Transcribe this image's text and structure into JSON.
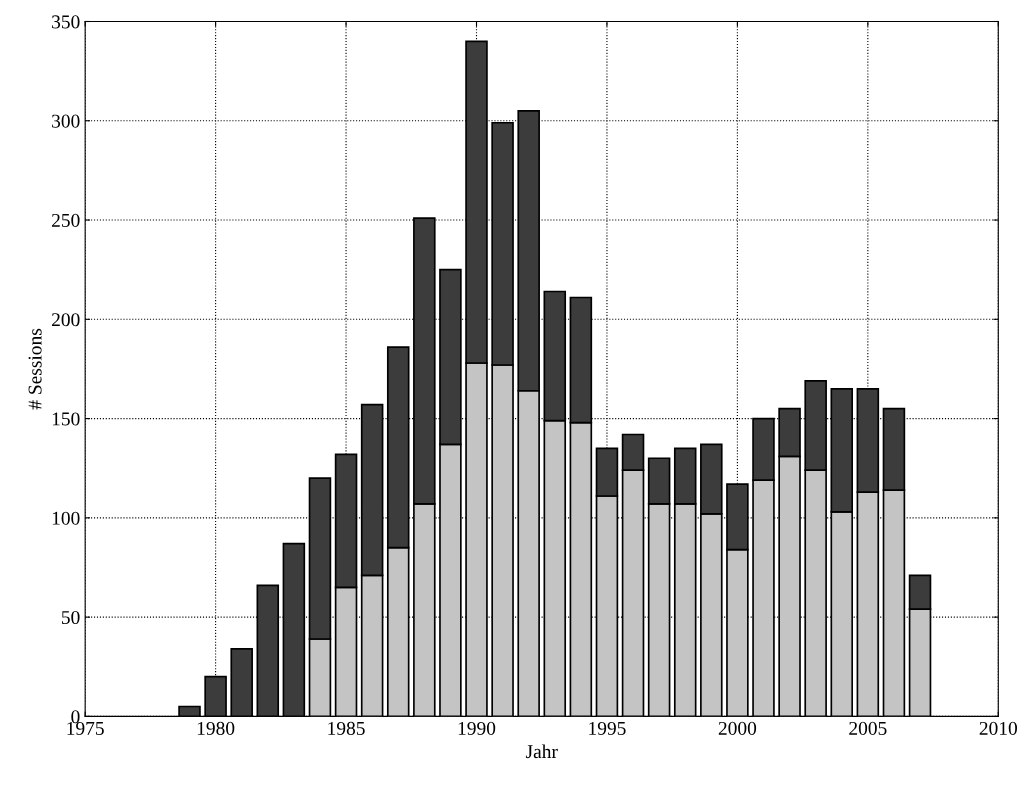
{
  "chart_data": {
    "type": "bar",
    "stacked": true,
    "xlabel": "Jahr",
    "ylabel": "# Sessions",
    "x": [
      1979,
      1980,
      1981,
      1982,
      1983,
      1984,
      1985,
      1986,
      1987,
      1988,
      1989,
      1990,
      1991,
      1992,
      1993,
      1994,
      1995,
      1996,
      1997,
      1998,
      1999,
      2000,
      2001,
      2002,
      2003,
      2004,
      2005,
      2006,
      2007
    ],
    "series": [
      {
        "color": "#c4c4c4",
        "values": [
          0,
          0,
          0,
          0,
          0,
          39,
          65,
          71,
          85,
          107,
          137,
          178,
          177,
          164,
          149,
          148,
          111,
          124,
          107,
          107,
          102,
          84,
          119,
          131,
          124,
          103,
          113,
          114,
          54
        ]
      },
      {
        "color": "#3c3c3c",
        "values": [
          5,
          20,
          34,
          66,
          87,
          81,
          67,
          86,
          101,
          144,
          88,
          162,
          122,
          141,
          65,
          63,
          24,
          18,
          23,
          28,
          35,
          33,
          31,
          24,
          45,
          62,
          52,
          41,
          17
        ]
      }
    ],
    "xlim": [
      1975,
      2010
    ],
    "xticks": [
      1975,
      1980,
      1985,
      1990,
      1995,
      2000,
      2005,
      2010
    ],
    "ylim": [
      0,
      350
    ],
    "yticks": [
      0,
      50,
      100,
      150,
      200,
      250,
      300,
      350
    ],
    "grid": true,
    "line_style": "dotted"
  }
}
